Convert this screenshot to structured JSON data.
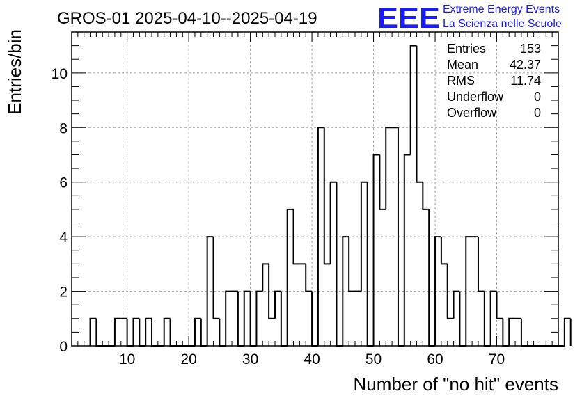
{
  "logo": {
    "mark": "EEE",
    "line1": "Extreme Energy Events",
    "line2": "La Scienza nelle Scuole",
    "color": "#1a1aff"
  },
  "stats": [
    {
      "label": "Entries",
      "value": "153"
    },
    {
      "label": "Mean",
      "value": "42.37"
    },
    {
      "label": "RMS",
      "value": "11.74"
    },
    {
      "label": "Underflow",
      "value": "0"
    },
    {
      "label": "Overflow",
      "value": "0"
    }
  ],
  "chart_data": {
    "type": "bar",
    "title": "GROS-01 2025-04-10--2025-04-19",
    "xlabel": "Number of \"no hit\" events",
    "ylabel": "Entries/bin",
    "xlim": [
      1,
      80
    ],
    "ylim": [
      0,
      11.5
    ],
    "x_ticks": [
      10,
      20,
      30,
      40,
      50,
      60,
      70
    ],
    "y_ticks": [
      0,
      2,
      4,
      6,
      8,
      10
    ],
    "grid": true,
    "legend": "none",
    "bin_width": 1,
    "bin_edges_start": 4,
    "values": [
      1,
      0,
      0,
      0,
      1,
      1,
      0,
      1,
      0,
      1,
      0,
      0,
      1,
      0,
      0,
      0,
      0,
      1,
      0,
      4,
      1,
      0,
      2,
      2,
      0,
      2,
      0,
      2,
      3,
      1,
      2,
      0,
      5,
      3,
      3,
      2,
      0,
      8,
      3,
      6,
      0,
      4,
      2,
      2,
      6,
      0,
      7,
      5,
      8,
      8,
      0,
      7,
      11,
      6,
      5,
      0,
      4,
      3,
      1,
      2,
      0,
      4,
      4,
      2,
      0,
      2,
      1,
      0,
      1,
      1,
      0,
      0,
      0,
      0,
      0,
      0,
      0,
      1
    ],
    "line_color": "#000000"
  }
}
